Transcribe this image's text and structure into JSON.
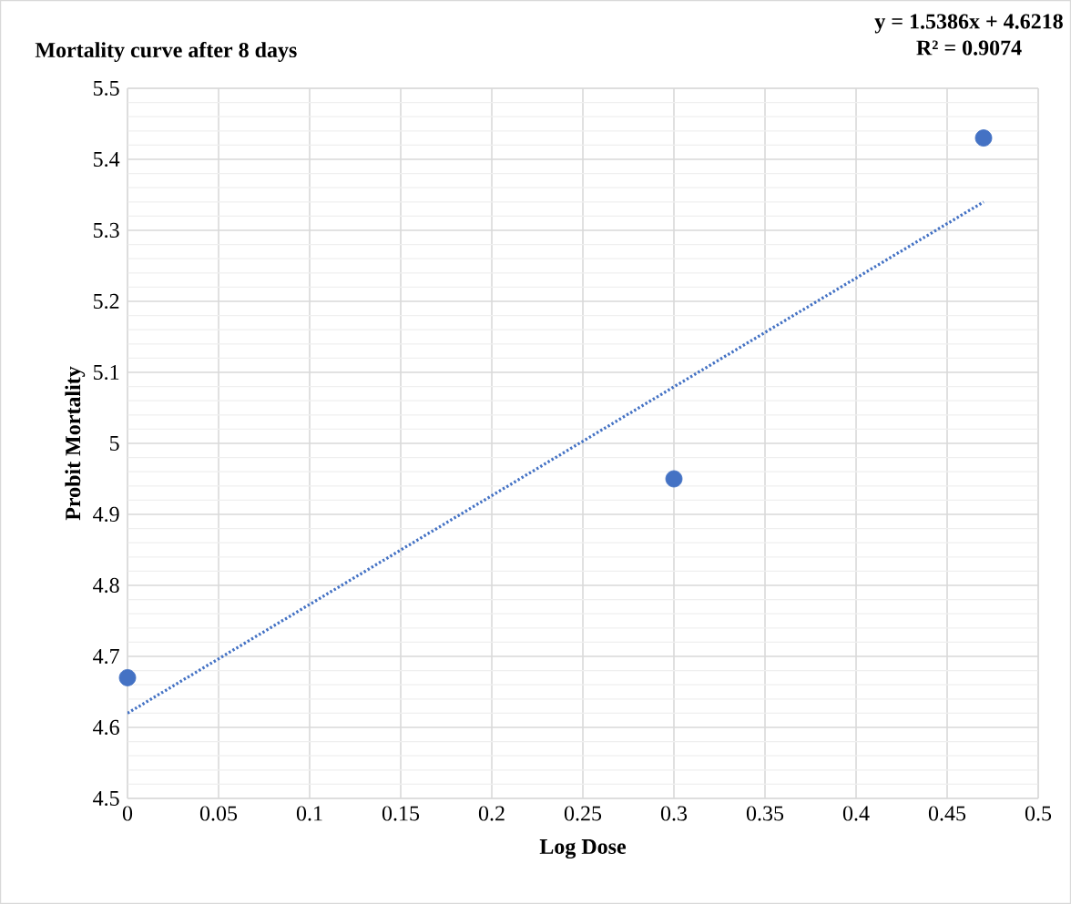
{
  "chart_data": {
    "type": "scatter",
    "title": "Mortality curve after 8 days",
    "xlabel": "Log Dose",
    "ylabel": "Probit Mortality",
    "annotations": [
      "y = 1.5386x + 4.6218",
      "R² = 0.9074"
    ],
    "series": [
      {
        "color": "#4472c4",
        "marker": "circle",
        "x": [
          0,
          0.3,
          0.47
        ],
        "values": [
          4.67,
          4.95,
          5.43
        ]
      },
      {
        "type": "line",
        "color": "#4472c4",
        "marker": "none",
        "line_style": "dotted",
        "x": [
          0,
          0.47
        ],
        "values": [
          4.62,
          5.34
        ]
      }
    ],
    "grid": true,
    "xlim": [
      0,
      0.5
    ],
    "ylim": [
      4.5,
      5.5
    ],
    "xticks": [
      0,
      0.05,
      0.1,
      0.15,
      0.2,
      0.25,
      0.3,
      0.35,
      0.4,
      0.45,
      0.5
    ],
    "yticks": [
      4.5,
      4.6,
      4.7,
      4.8,
      4.9,
      5,
      5.1,
      5.2,
      5.3,
      5.4,
      5.5
    ]
  }
}
